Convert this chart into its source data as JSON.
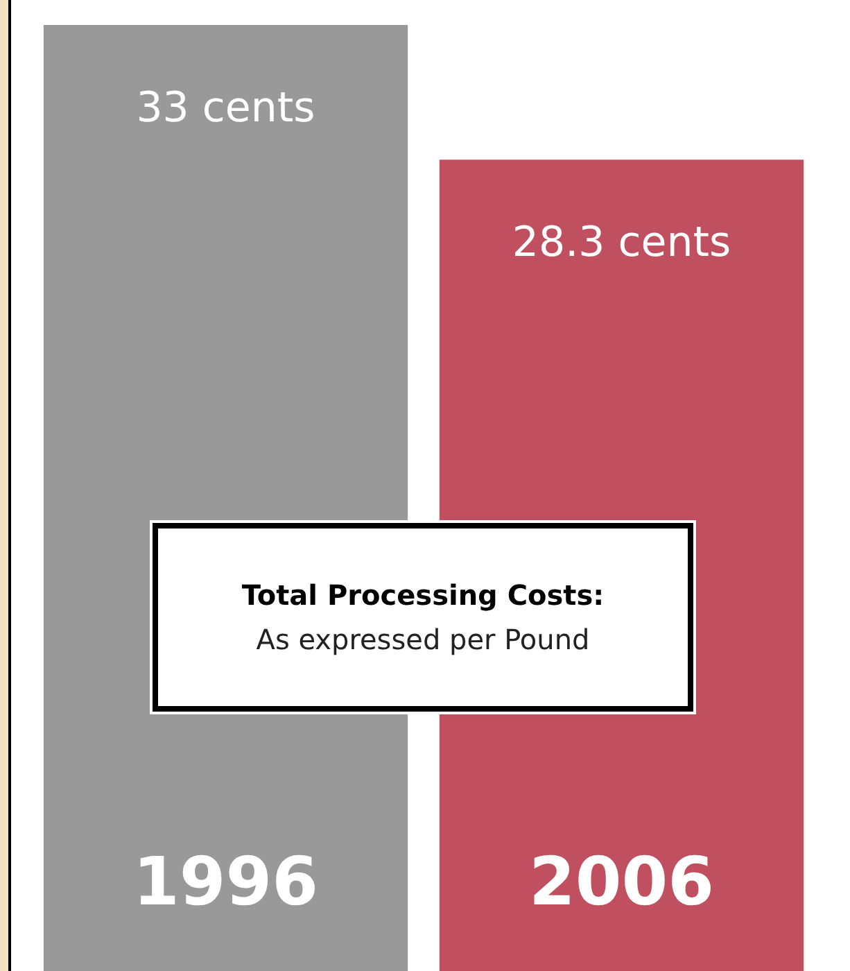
{
  "chart_data": {
    "type": "bar",
    "title": "Total Processing Costs:",
    "subtitle": "As expressed per Pound",
    "categories": [
      "1996",
      "2006"
    ],
    "values": [
      33,
      28.3
    ],
    "colors": [
      "#999999",
      "#c0505f"
    ],
    "value_labels": [
      "33 cents",
      "28.3 cents"
    ]
  }
}
